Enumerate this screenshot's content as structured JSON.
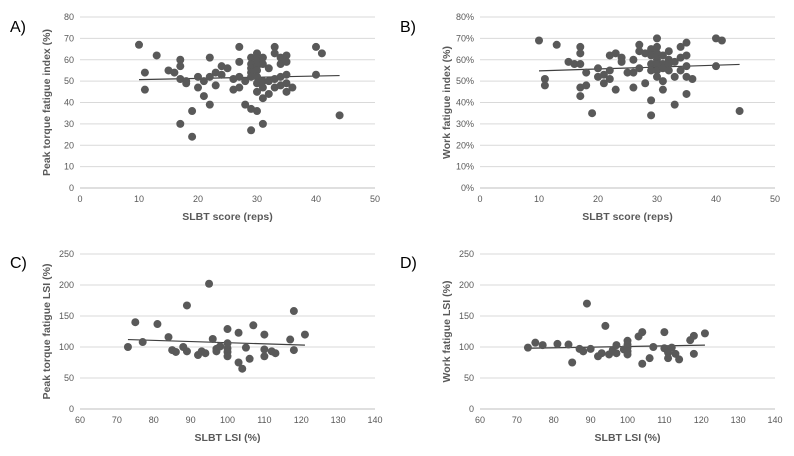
{
  "colors": {
    "point": "#595959",
    "trend": "#404040",
    "grid": "#d9d9d9",
    "text": "#595959"
  },
  "chart_data": [
    {
      "type": "scatter",
      "label": "A)",
      "xlabel": "SLBT score (reps)",
      "ylabel": "Peak torque fatigue index (%)",
      "xlim": [
        0,
        50
      ],
      "xticks": [
        0,
        10,
        20,
        30,
        40,
        50
      ],
      "ylim": [
        0,
        80
      ],
      "yticks": [
        0,
        10,
        20,
        30,
        40,
        50,
        60,
        70,
        80
      ],
      "grid": true,
      "trendline": {
        "x": [
          10,
          44
        ],
        "y": [
          50.7,
          52.6
        ]
      },
      "points": [
        [
          10,
          67
        ],
        [
          11,
          54
        ],
        [
          11,
          46
        ],
        [
          13,
          62
        ],
        [
          15,
          55
        ],
        [
          16,
          54
        ],
        [
          17,
          60
        ],
        [
          17,
          57
        ],
        [
          17,
          51
        ],
        [
          17,
          30
        ],
        [
          18,
          50
        ],
        [
          18,
          49
        ],
        [
          19,
          36
        ],
        [
          19,
          24
        ],
        [
          20,
          52
        ],
        [
          20,
          47
        ],
        [
          21,
          43
        ],
        [
          21,
          50
        ],
        [
          22,
          61
        ],
        [
          22,
          52
        ],
        [
          22,
          39
        ],
        [
          23,
          54
        ],
        [
          23,
          48
        ],
        [
          24,
          57
        ],
        [
          24,
          53
        ],
        [
          25,
          56
        ],
        [
          26,
          51
        ],
        [
          26,
          46
        ],
        [
          27,
          66
        ],
        [
          27,
          59
        ],
        [
          27,
          52
        ],
        [
          27,
          47
        ],
        [
          28,
          50
        ],
        [
          28,
          39
        ],
        [
          29,
          61
        ],
        [
          29,
          58
        ],
        [
          29,
          56
        ],
        [
          29,
          54
        ],
        [
          29,
          52
        ],
        [
          29,
          37
        ],
        [
          29,
          27
        ],
        [
          30,
          63
        ],
        [
          30,
          60
        ],
        [
          30,
          57
        ],
        [
          30,
          55
        ],
        [
          30,
          52
        ],
        [
          30,
          49
        ],
        [
          30,
          45
        ],
        [
          30,
          36
        ],
        [
          31,
          61
        ],
        [
          31,
          58
        ],
        [
          31,
          50
        ],
        [
          31,
          47
        ],
        [
          31,
          42
        ],
        [
          31,
          30
        ],
        [
          32,
          56
        ],
        [
          32,
          50
        ],
        [
          32,
          44
        ],
        [
          33,
          66
        ],
        [
          33,
          63
        ],
        [
          33,
          51
        ],
        [
          33,
          47
        ],
        [
          34,
          61
        ],
        [
          34,
          58
        ],
        [
          34,
          52
        ],
        [
          34,
          48
        ],
        [
          35,
          62
        ],
        [
          35,
          59
        ],
        [
          35,
          53
        ],
        [
          35,
          49
        ],
        [
          35,
          45
        ],
        [
          36,
          47
        ],
        [
          40,
          66
        ],
        [
          40,
          53
        ],
        [
          41,
          63
        ],
        [
          44,
          34
        ]
      ]
    },
    {
      "type": "scatter",
      "label": "B)",
      "xlabel": "SLBT score (reps)",
      "ylabel": "Work fatigue index (%)",
      "xlim": [
        0,
        50
      ],
      "xticks": [
        0,
        10,
        20,
        30,
        40,
        50
      ],
      "ylim": [
        0,
        80
      ],
      "yticks": [
        0,
        10,
        20,
        30,
        40,
        50,
        60,
        70,
        80
      ],
      "yticklabels": [
        "0%",
        "10%",
        "20%",
        "30%",
        "40%",
        "50%",
        "60%",
        "70%",
        "80%"
      ],
      "grid": true,
      "trendline": {
        "x": [
          10,
          44
        ],
        "y": [
          54.8,
          57.8
        ]
      },
      "points": [
        [
          10,
          69
        ],
        [
          11,
          51
        ],
        [
          11,
          48
        ],
        [
          13,
          67
        ],
        [
          15,
          59
        ],
        [
          16,
          58
        ],
        [
          17,
          66
        ],
        [
          17,
          63
        ],
        [
          17,
          58
        ],
        [
          17,
          47
        ],
        [
          17,
          43
        ],
        [
          18,
          54
        ],
        [
          18,
          48
        ],
        [
          19,
          35
        ],
        [
          20,
          56
        ],
        [
          20,
          52
        ],
        [
          21,
          53
        ],
        [
          21,
          49
        ],
        [
          22,
          62
        ],
        [
          22,
          55
        ],
        [
          22,
          51
        ],
        [
          23,
          63
        ],
        [
          23,
          46
        ],
        [
          24,
          61
        ],
        [
          24,
          59
        ],
        [
          25,
          54
        ],
        [
          26,
          60
        ],
        [
          26,
          54
        ],
        [
          26,
          47
        ],
        [
          27,
          67
        ],
        [
          27,
          64
        ],
        [
          27,
          56
        ],
        [
          28,
          63
        ],
        [
          28,
          49
        ],
        [
          29,
          65
        ],
        [
          29,
          62
        ],
        [
          29,
          58
        ],
        [
          29,
          55
        ],
        [
          29,
          41
        ],
        [
          29,
          34
        ],
        [
          30,
          70
        ],
        [
          30,
          66
        ],
        [
          30,
          63
        ],
        [
          30,
          60
        ],
        [
          30,
          58
        ],
        [
          30,
          55
        ],
        [
          30,
          52
        ],
        [
          31,
          62
        ],
        [
          31,
          58
        ],
        [
          31,
          56
        ],
        [
          31,
          50
        ],
        [
          31,
          46
        ],
        [
          32,
          64
        ],
        [
          32,
          60
        ],
        [
          32,
          58
        ],
        [
          32,
          55
        ],
        [
          33,
          59
        ],
        [
          33,
          52
        ],
        [
          33,
          39
        ],
        [
          34,
          66
        ],
        [
          34,
          61
        ],
        [
          34,
          55
        ],
        [
          35,
          68
        ],
        [
          35,
          62
        ],
        [
          35,
          57
        ],
        [
          35,
          52
        ],
        [
          35,
          44
        ],
        [
          36,
          51
        ],
        [
          40,
          70
        ],
        [
          40,
          57
        ],
        [
          41,
          69
        ],
        [
          44,
          36
        ]
      ]
    },
    {
      "type": "scatter",
      "label": "C)",
      "xlabel": "SLBT LSI (%)",
      "ylabel": "Peak torque fatigue LSI (%)",
      "xlim": [
        60,
        140
      ],
      "xticks": [
        60,
        70,
        80,
        90,
        100,
        110,
        120,
        130,
        140
      ],
      "ylim": [
        0,
        250
      ],
      "yticks": [
        0,
        50,
        100,
        150,
        200,
        250
      ],
      "grid": true,
      "trendline": {
        "x": [
          73,
          121
        ],
        "y": [
          112,
          103
        ]
      },
      "points": [
        [
          73,
          100
        ],
        [
          75,
          140
        ],
        [
          77,
          108
        ],
        [
          81,
          137
        ],
        [
          84,
          116
        ],
        [
          85,
          95
        ],
        [
          86,
          92
        ],
        [
          88,
          100
        ],
        [
          89,
          167
        ],
        [
          89,
          93
        ],
        [
          92,
          87
        ],
        [
          93,
          93
        ],
        [
          94,
          90
        ],
        [
          95,
          202
        ],
        [
          96,
          113
        ],
        [
          97,
          97
        ],
        [
          97,
          93
        ],
        [
          98,
          101
        ],
        [
          100,
          129
        ],
        [
          100,
          106
        ],
        [
          100,
          98
        ],
        [
          100,
          92
        ],
        [
          100,
          85
        ],
        [
          103,
          123
        ],
        [
          103,
          75
        ],
        [
          104,
          65
        ],
        [
          105,
          99
        ],
        [
          106,
          81
        ],
        [
          107,
          135
        ],
        [
          110,
          120
        ],
        [
          110,
          96
        ],
        [
          110,
          85
        ],
        [
          112,
          93
        ],
        [
          113,
          90
        ],
        [
          117,
          112
        ],
        [
          118,
          158
        ],
        [
          118,
          95
        ],
        [
          121,
          120
        ]
      ]
    },
    {
      "type": "scatter",
      "label": "D)",
      "xlabel": "SLBT LSI (%)",
      "ylabel": "Work fatigue LSI (%)",
      "xlim": [
        60,
        140
      ],
      "xticks": [
        60,
        70,
        80,
        90,
        100,
        110,
        120,
        130,
        140
      ],
      "ylim": [
        0,
        250
      ],
      "yticks": [
        0,
        50,
        100,
        150,
        200,
        250
      ],
      "grid": true,
      "trendline": {
        "x": [
          73,
          121
        ],
        "y": [
          98,
          103
        ]
      },
      "points": [
        [
          73,
          99
        ],
        [
          75,
          107
        ],
        [
          77,
          103
        ],
        [
          81,
          105
        ],
        [
          84,
          104
        ],
        [
          85,
          75
        ],
        [
          87,
          97
        ],
        [
          88,
          93
        ],
        [
          89,
          170
        ],
        [
          90,
          97
        ],
        [
          92,
          85
        ],
        [
          93,
          90
        ],
        [
          94,
          134
        ],
        [
          95,
          88
        ],
        [
          96,
          95
        ],
        [
          97,
          103
        ],
        [
          97,
          90
        ],
        [
          99,
          96
        ],
        [
          100,
          110
        ],
        [
          100,
          104
        ],
        [
          100,
          99
        ],
        [
          100,
          93
        ],
        [
          100,
          88
        ],
        [
          103,
          117
        ],
        [
          104,
          124
        ],
        [
          104,
          73
        ],
        [
          106,
          82
        ],
        [
          107,
          100
        ],
        [
          110,
          124
        ],
        [
          110,
          98
        ],
        [
          111,
          91
        ],
        [
          111,
          82
        ],
        [
          112,
          99
        ],
        [
          113,
          89
        ],
        [
          114,
          80
        ],
        [
          117,
          111
        ],
        [
          118,
          118
        ],
        [
          118,
          89
        ],
        [
          121,
          122
        ]
      ]
    }
  ]
}
